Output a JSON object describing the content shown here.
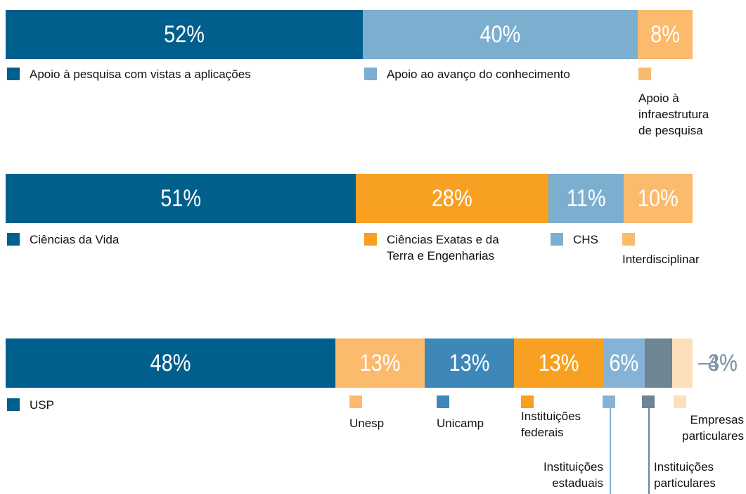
{
  "chart_data": [
    {
      "type": "bar",
      "orientation": "horizontal",
      "stacked": true,
      "xlim": [
        0,
        100
      ],
      "series": [
        {
          "name": "Apoio à pesquisa com vistas a aplicações",
          "color": "#005f8c",
          "values": [
            52
          ],
          "value_labels": [
            "52%"
          ]
        },
        {
          "name": "Apoio ao avanço do conhecimento",
          "color": "#7caed0",
          "values": [
            40
          ],
          "value_labels": [
            "40%"
          ]
        },
        {
          "name": "Apoio à infraestrutura de pesquisa",
          "color": "#fbba6c",
          "values": [
            8
          ],
          "value_labels": [
            "8%"
          ]
        }
      ]
    },
    {
      "type": "bar",
      "orientation": "horizontal",
      "stacked": true,
      "xlim": [
        0,
        100
      ],
      "series": [
        {
          "name": "Ciências da Vida",
          "color": "#005f8c",
          "values": [
            51
          ],
          "value_labels": [
            "51%"
          ]
        },
        {
          "name": "Ciências Exatas e da Terra e Engenharias",
          "color": "#f7a021",
          "values": [
            28
          ],
          "value_labels": [
            "28%"
          ]
        },
        {
          "name": "CHS",
          "color": "#7caed0",
          "values": [
            11
          ],
          "value_labels": [
            "11%"
          ]
        },
        {
          "name": "Interdisciplinar",
          "color": "#fbba6c",
          "values": [
            10
          ],
          "value_labels": [
            "10%"
          ]
        }
      ]
    },
    {
      "type": "bar",
      "orientation": "horizontal",
      "stacked": true,
      "xlim": [
        0,
        100
      ],
      "series": [
        {
          "name": "USP",
          "color": "#005f8c",
          "values": [
            48
          ],
          "value_labels": [
            "48%"
          ]
        },
        {
          "name": "Unesp",
          "color": "#fbba6c",
          "values": [
            13
          ],
          "value_labels": [
            "13%"
          ]
        },
        {
          "name": "Unicamp",
          "color": "#3d88b8",
          "values": [
            13
          ],
          "value_labels": [
            "13%"
          ]
        },
        {
          "name": "Instituições federais",
          "color": "#f7a021",
          "values": [
            13
          ],
          "value_labels": [
            "13%"
          ]
        },
        {
          "name": "Instituições estaduais",
          "color": "#86b3d5",
          "values": [
            6
          ],
          "value_labels": [
            "6%"
          ]
        },
        {
          "name": "Instituições particulares",
          "color": "#6e8594",
          "values": [
            4
          ],
          "value_labels": [
            "4%"
          ]
        },
        {
          "name": "Empresas particulares",
          "color": "#fde0bb",
          "values": [
            3
          ],
          "value_labels": [
            "3%"
          ]
        }
      ]
    }
  ]
}
